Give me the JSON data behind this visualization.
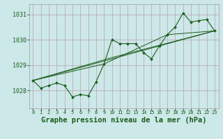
{
  "background_color": "#cce8e8",
  "grid_color": "#b8a0b0",
  "line_color": "#1a5c1a",
  "title": "Graphe pression niveau de la mer (hPa)",
  "title_fontsize": 7.5,
  "xlim": [
    -0.5,
    23.5
  ],
  "ylim": [
    1027.3,
    1031.4
  ],
  "yticks": [
    1028,
    1029,
    1030,
    1031
  ],
  "xticks": [
    0,
    1,
    2,
    3,
    4,
    5,
    6,
    7,
    8,
    9,
    10,
    11,
    12,
    13,
    14,
    15,
    16,
    17,
    18,
    19,
    20,
    21,
    22,
    23
  ],
  "main_line": {
    "x": [
      0,
      1,
      2,
      3,
      4,
      5,
      6,
      7,
      8,
      9,
      10,
      11,
      12,
      13,
      14,
      15,
      16,
      17,
      18,
      19,
      20,
      21,
      22,
      23
    ],
    "y": [
      1028.4,
      1028.1,
      1028.2,
      1028.3,
      1028.2,
      1027.75,
      1027.85,
      1027.8,
      1028.35,
      1029.05,
      1030.0,
      1029.85,
      1029.85,
      1029.85,
      1029.5,
      1029.25,
      1029.75,
      1030.2,
      1030.5,
      1031.05,
      1030.7,
      1030.75,
      1030.8,
      1030.35
    ]
  },
  "trend_lines": [
    {
      "x": [
        0,
        23
      ],
      "y": [
        1028.4,
        1030.35
      ]
    },
    {
      "x": [
        0,
        10,
        23
      ],
      "y": [
        1028.4,
        1029.3,
        1030.35
      ]
    },
    {
      "x": [
        0,
        9,
        17,
        23
      ],
      "y": [
        1028.4,
        1029.05,
        1030.2,
        1030.35
      ]
    }
  ]
}
